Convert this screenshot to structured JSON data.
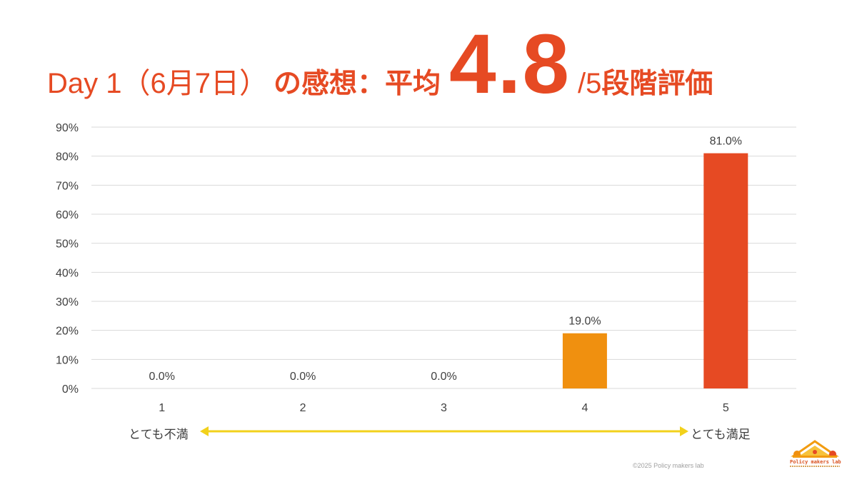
{
  "title": {
    "prefix": "Day 1（6月7日）",
    "bold_part": "の感想：平均",
    "average": "4.8",
    "suffix_num": "/5",
    "suffix": "段階評価"
  },
  "scale_labels": {
    "left": "とても不満",
    "right": "とても満足"
  },
  "footer": {
    "copyright": "©2025 Policy makers lab",
    "logo_text": "Policy makers lab"
  },
  "colors": {
    "title": "#e64a23",
    "bar_4": "#f0900f",
    "bar_5": "#e64a23",
    "arrow": "#f2d11b",
    "gridline": "#d9d9d9"
  },
  "chart_data": {
    "type": "bar",
    "categories": [
      "1",
      "2",
      "3",
      "4",
      "5"
    ],
    "values": [
      0.0,
      0.0,
      0.0,
      19.0,
      81.0
    ],
    "data_labels": [
      "0.0%",
      "0.0%",
      "0.0%",
      "19.0%",
      "81.0%"
    ],
    "y_ticks": [
      "0%",
      "10%",
      "20%",
      "30%",
      "40%",
      "50%",
      "60%",
      "70%",
      "80%",
      "90%"
    ],
    "ylim": [
      0,
      90
    ],
    "grid": true,
    "legend": "none",
    "title": "",
    "xlabel": "",
    "ylabel": ""
  }
}
